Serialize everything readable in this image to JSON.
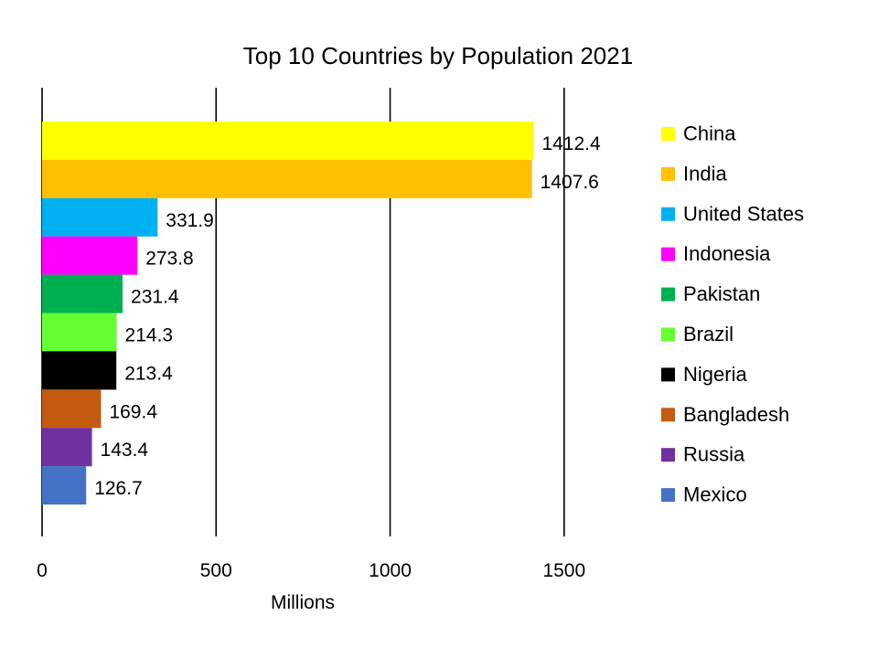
{
  "chart_data": {
    "type": "bar",
    "orientation": "horizontal",
    "title": "Top 10 Countries by Population 2021",
    "xlabel": "Millions",
    "ylabel": "",
    "xlim": [
      0,
      1500
    ],
    "xticks": [
      0,
      500,
      1000,
      1500
    ],
    "xtick_labels": [
      "0",
      "500",
      "1000",
      "1500"
    ],
    "grid": true,
    "legend_position": "right",
    "series": [
      {
        "name": "China",
        "value": 1412.4,
        "label": "1412.4",
        "color": "#FFFF00"
      },
      {
        "name": "India",
        "value": 1407.6,
        "label": "1407.6",
        "color": "#FFC000"
      },
      {
        "name": "United States",
        "value": 331.9,
        "label": "331.9",
        "color": "#00B0F0"
      },
      {
        "name": "Indonesia",
        "value": 273.8,
        "label": "273.8",
        "color": "#FF00FF"
      },
      {
        "name": "Pakistan",
        "value": 231.4,
        "label": "231.4",
        "color": "#00B050"
      },
      {
        "name": "Brazil",
        "value": 214.3,
        "label": "214.3",
        "color": "#66FF33"
      },
      {
        "name": "Nigeria",
        "value": 213.4,
        "label": "213.4",
        "color": "#000000"
      },
      {
        "name": "Bangladesh",
        "value": 169.4,
        "label": "169.4",
        "color": "#C55A11"
      },
      {
        "name": "Russia",
        "value": 143.4,
        "label": "143.4",
        "color": "#7030A0"
      },
      {
        "name": "Mexico",
        "value": 126.7,
        "label": "126.7",
        "color": "#4472C4"
      }
    ]
  }
}
